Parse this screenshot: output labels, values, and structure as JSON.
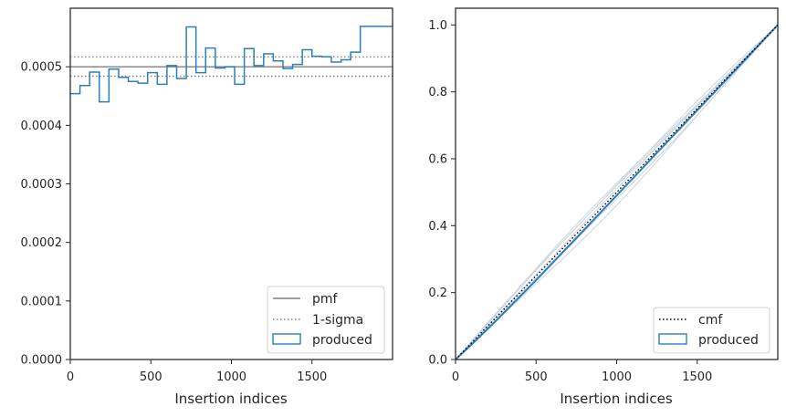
{
  "chart_data": [
    {
      "type": "line",
      "xlabel": "Insertion indices",
      "ylabel": "",
      "xlim": [
        0,
        2000
      ],
      "ylim": [
        0,
        0.0006
      ],
      "xticks": [
        0,
        500,
        1000,
        1500
      ],
      "yticks": [
        0,
        0.0001,
        0.0002,
        0.0003,
        0.0004,
        0.0005
      ],
      "ytick_labels": [
        "0.0000",
        "0.0001",
        "0.0002",
        "0.0003",
        "0.0004",
        "0.0005"
      ],
      "legend": {
        "position": "lower-right",
        "entries": [
          "pmf",
          "1-sigma",
          "produced"
        ]
      },
      "pmf": 0.0005,
      "sigma_band": [
        0.000484,
        0.000517
      ],
      "produced": {
        "bin_edges": [
          0,
          60,
          120,
          180,
          240,
          300,
          360,
          420,
          480,
          540,
          600,
          660,
          720,
          780,
          840,
          900,
          960,
          1020,
          1080,
          1140,
          1200,
          1260,
          1320,
          1380,
          1440,
          1500,
          1560,
          1620,
          1680,
          1740,
          1800,
          1860,
          1920,
          2000
        ],
        "values": [
          0.000454,
          0.000468,
          0.000491,
          0.00044,
          0.000496,
          0.000482,
          0.000475,
          0.000472,
          0.00049,
          0.00047,
          0.000502,
          0.00048,
          0.000568,
          0.00049,
          0.000532,
          0.000498,
          0.0005,
          0.00047,
          0.000531,
          0.000502,
          0.000522,
          0.00051,
          0.000497,
          0.000504,
          0.000529,
          0.000518,
          0.000517,
          0.000508,
          0.000512,
          0.000525,
          0.000569,
          0.000569,
          0.000569
        ]
      },
      "colors": {
        "pmf": "#808080",
        "sigma": "#808080",
        "produced": "#2c7fb8"
      }
    },
    {
      "type": "line",
      "xlabel": "Insertion indices",
      "ylabel": "",
      "xlim": [
        0,
        2000
      ],
      "ylim": [
        0,
        1.05
      ],
      "xticks": [
        0,
        500,
        1000,
        1500
      ],
      "yticks": [
        0,
        0.2,
        0.4,
        0.6,
        0.8,
        1.0
      ],
      "ytick_labels": [
        "0.0",
        "0.2",
        "0.4",
        "0.6",
        "0.8",
        "1.0"
      ],
      "legend": {
        "position": "lower-right",
        "entries": [
          "cmf",
          "produced"
        ]
      },
      "cmf": {
        "x": [
          0,
          2000
        ],
        "y": [
          0,
          1.0
        ]
      },
      "produced": {
        "x": [
          0,
          100,
          250,
          500,
          750,
          1000,
          1250,
          1500,
          1750,
          2000
        ],
        "y": [
          0,
          0.045,
          0.115,
          0.237,
          0.363,
          0.49,
          0.618,
          0.745,
          0.872,
          1.0
        ]
      },
      "colors": {
        "cmf": "#000000",
        "produced": "#2c7fb8",
        "faint": "#c8d6e3"
      }
    }
  ]
}
